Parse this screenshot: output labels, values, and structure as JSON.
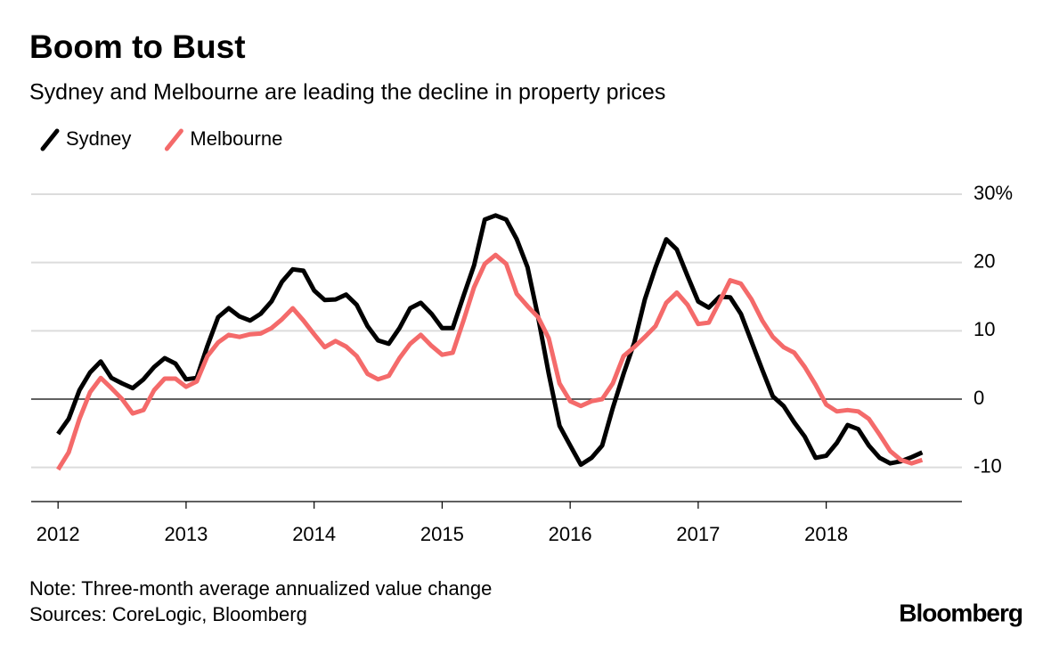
{
  "chart_data": {
    "type": "line",
    "title": "Boom to Bust",
    "subtitle": "Sydney and Melbourne are leading the decline in property prices",
    "note": "Note: Three-month average annualized value change",
    "source": "Sources: CoreLogic, Bloomberg",
    "brand": "Bloomberg",
    "legend": "top-left",
    "grid": true,
    "x": [
      2012,
      2012.083,
      2012.167,
      2012.25,
      2012.333,
      2012.417,
      2012.5,
      2012.583,
      2012.667,
      2012.75,
      2012.833,
      2012.917,
      2013,
      2013.083,
      2013.167,
      2013.25,
      2013.333,
      2013.417,
      2013.5,
      2013.583,
      2013.667,
      2013.75,
      2013.833,
      2013.917,
      2014,
      2014.083,
      2014.167,
      2014.25,
      2014.333,
      2014.417,
      2014.5,
      2014.583,
      2014.667,
      2014.75,
      2014.833,
      2014.917,
      2015,
      2015.083,
      2015.167,
      2015.25,
      2015.333,
      2015.417,
      2015.5,
      2015.583,
      2015.667,
      2015.75,
      2015.833,
      2015.917,
      2016,
      2016.083,
      2016.167,
      2016.25,
      2016.333,
      2016.417,
      2016.5,
      2016.583,
      2016.667,
      2016.75,
      2016.833,
      2016.917,
      2017,
      2017.083,
      2017.167,
      2017.25,
      2017.333,
      2017.417,
      2017.5,
      2017.583,
      2017.667,
      2017.75,
      2017.833,
      2017.917,
      2018,
      2018.083,
      2018.167,
      2018.25,
      2018.333,
      2018.417,
      2018.5,
      2018.583,
      2018.667,
      2018.75
    ],
    "series": [
      {
        "name": "Sydney",
        "color": "#000000",
        "values": [
          -5.1,
          -2.9,
          1.3,
          3.9,
          5.5,
          3.1,
          2.3,
          1.6,
          2.9,
          4.7,
          6,
          5.2,
          2.9,
          3.1,
          7.8,
          12,
          13.3,
          12.1,
          11.5,
          12.5,
          14.3,
          17.2,
          19,
          18.8,
          15.9,
          14.5,
          14.6,
          15.3,
          13.8,
          10.7,
          8.6,
          8.1,
          10.4,
          13.3,
          14.1,
          12.5,
          10.4,
          10.4,
          15.1,
          19.6,
          26.3,
          26.9,
          26.3,
          23.4,
          19.3,
          12,
          3.7,
          -3.9,
          -6.8,
          -9.6,
          -8.6,
          -6.8,
          -1.3,
          3.7,
          8.2,
          14.6,
          19.3,
          23.4,
          21.9,
          18,
          14.3,
          13.4,
          15,
          14.9,
          12.5,
          8.4,
          4.3,
          0.4,
          -1,
          -3.4,
          -5.5,
          -8.6,
          -8.3,
          -6.4,
          -3.8,
          -4.4,
          -6.8,
          -8.6,
          -9.4,
          -9.1,
          -8.5,
          -7.8
        ]
      },
      {
        "name": "Melbourne",
        "color": "#f46a6a",
        "values": [
          -10.3,
          -7.8,
          -2.9,
          1,
          3.1,
          1.6,
          0,
          -2.1,
          -1.6,
          1.3,
          3,
          3,
          1.8,
          2.6,
          6.3,
          8.3,
          9.4,
          9.1,
          9.5,
          9.6,
          10.4,
          11.7,
          13.3,
          11.5,
          9.5,
          7.6,
          8.5,
          7.7,
          6.3,
          3.7,
          2.9,
          3.4,
          6,
          8.1,
          9.4,
          7.8,
          6.5,
          6.8,
          11.5,
          16.4,
          19.8,
          21.1,
          19.8,
          15.4,
          13.6,
          12,
          8.9,
          2.3,
          -0.3,
          -1,
          -0.3,
          0,
          2.3,
          6.3,
          7.6,
          9.1,
          10.7,
          14.1,
          15.6,
          13.8,
          11,
          11.2,
          14.3,
          17.4,
          16.9,
          14.6,
          11.5,
          9.1,
          7.6,
          6.8,
          4.7,
          2.1,
          -0.8,
          -1.8,
          -1.6,
          -1.8,
          -2.9,
          -5.2,
          -7.6,
          -8.9,
          -9.4,
          -8.9
        ]
      }
    ],
    "xlim": [
      2011.79,
      2019.06
    ],
    "xticks": [
      2012,
      2013,
      2014,
      2015,
      2016,
      2017,
      2018
    ],
    "ylim": [
      -15,
      30
    ],
    "yticks": [
      {
        "value": 30,
        "label": "30%"
      },
      20,
      10,
      0,
      -10
    ]
  }
}
